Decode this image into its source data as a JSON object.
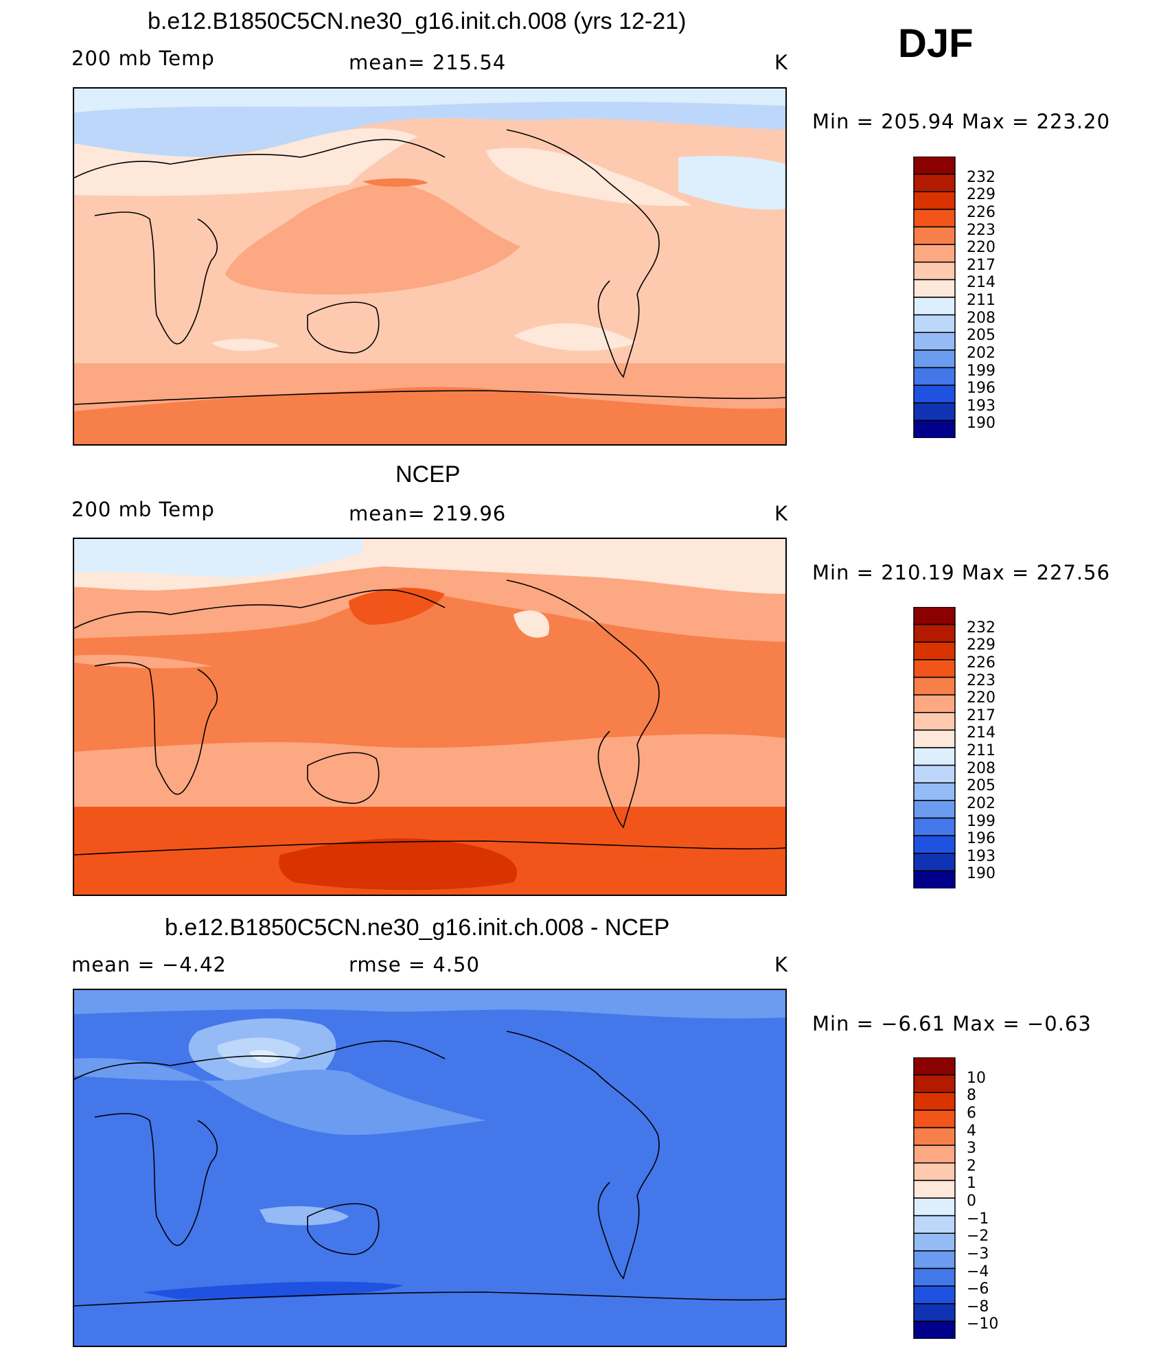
{
  "season": "DJF",
  "panels": [
    {
      "title": "b.e12.B1850C5CN.ne30_g16.init.ch.008 (yrs 12-21)",
      "left_label": "200 mb Temp",
      "center_label": "mean=  215.54",
      "right_label": "K",
      "minmax": "Min  =  205.94  Max  =  223.20",
      "colorbar_labels": [
        "232",
        "229",
        "226",
        "223",
        "220",
        "217",
        "214",
        "211",
        "208",
        "205",
        "202",
        "199",
        "196",
        "193",
        "190"
      ]
    },
    {
      "title": "NCEP",
      "left_label": "200 mb Temp",
      "center_label": "mean=  219.96",
      "right_label": "K",
      "minmax": "Min  =  210.19  Max  =  227.56",
      "colorbar_labels": [
        "232",
        "229",
        "226",
        "223",
        "220",
        "217",
        "214",
        "211",
        "208",
        "205",
        "202",
        "199",
        "196",
        "193",
        "190"
      ]
    },
    {
      "title": "b.e12.B1850C5CN.ne30_g16.init.ch.008 - NCEP",
      "left_label": "mean  =    −4.42",
      "center_label": "rmse  =     4.50",
      "right_label": "K",
      "minmax": "Min  =    −6.61  Max  =    −0.63",
      "colorbar_labels": [
        "10",
        "8",
        "6",
        "4",
        "3",
        "2",
        "1",
        "0",
        "−1",
        "−2",
        "−3",
        "−4",
        "−6",
        "−8",
        "−10"
      ]
    }
  ],
  "colors": {
    "scale": [
      "#8b0000",
      "#b31a00",
      "#d93300",
      "#f25519",
      "#f77f4a",
      "#fca882",
      "#fdcab0",
      "#fde8da",
      "#ddeefd",
      "#bcd7fa",
      "#94bbf5",
      "#6b9cf0",
      "#4477ea",
      "#1f52e0",
      "#0f33b3",
      "#00008b"
    ],
    "land_outline": "#000000"
  }
}
